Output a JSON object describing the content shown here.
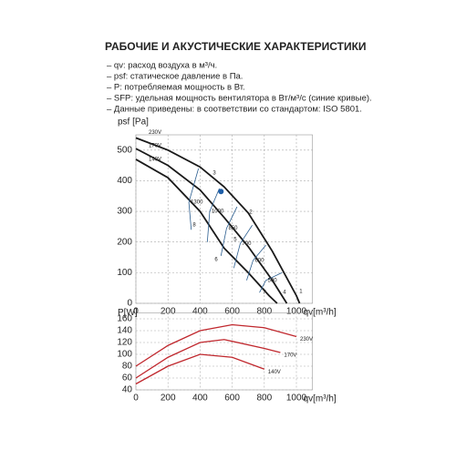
{
  "header": {
    "title": "РАБОЧИЕ И АКУСТИЧЕСКИЕ ХАРАКТЕРИСТИКИ",
    "notes": [
      "– qv: расход воздуха в м³/ч.",
      "– psf: статическое давление в Па.",
      "– P: потребляемая мощность в Вт.",
      "– SFP: удельная мощность вентилятора в Вт/м³/с (синие кривые).",
      "– Данные приведены: в соответствии со стандартом: ISO 5801."
    ]
  },
  "chart_data": [
    {
      "type": "line",
      "x_label": "qv[m³/h]",
      "y_label": "psf [Pa]",
      "xlim": [
        0,
        1100
      ],
      "xticks": [
        0,
        200,
        400,
        600,
        800,
        1000
      ],
      "ylim": [
        0,
        550
      ],
      "yticks": [
        0,
        100,
        200,
        300,
        400,
        500
      ],
      "grid": true,
      "series": [
        {
          "name": "230V",
          "color": "#1a1a1a",
          "x": [
            0,
            200,
            400,
            550,
            700,
            850,
            1000,
            1020
          ],
          "values": [
            540,
            500,
            445,
            380,
            295,
            170,
            25,
            0
          ]
        },
        {
          "name": "170V",
          "color": "#1a1a1a",
          "x": [
            0,
            200,
            400,
            550,
            700,
            850,
            940
          ],
          "values": [
            505,
            450,
            370,
            280,
            185,
            75,
            0
          ]
        },
        {
          "name": "140V",
          "color": "#1a1a1a",
          "x": [
            0,
            200,
            400,
            550,
            700,
            830,
            880
          ],
          "values": [
            470,
            410,
            300,
            180,
            100,
            25,
            0
          ]
        }
      ],
      "sfp_curves": [
        {
          "name": "1300",
          "color": "#2a5d8f",
          "x": [
            390,
            330,
            345
          ],
          "values": [
            440,
            330,
            240
          ]
        },
        {
          "name": "1000",
          "color": "#2a5d8f",
          "x": [
            520,
            460,
            445
          ],
          "values": [
            375,
            300,
            200
          ]
        },
        {
          "name": "850",
          "color": "#2a5d8f",
          "x": [
            630,
            565,
            530
          ],
          "values": [
            315,
            245,
            155
          ]
        },
        {
          "name": "700",
          "color": "#2a5d8f",
          "x": [
            725,
            650,
            610
          ],
          "values": [
            255,
            195,
            115
          ]
        },
        {
          "name": "600",
          "color": "#2a5d8f",
          "x": [
            810,
            730,
            690
          ],
          "values": [
            190,
            140,
            75
          ]
        },
        {
          "name": "500",
          "color": "#2a5d8f",
          "x": [
            910,
            810,
            770
          ],
          "values": [
            100,
            75,
            35
          ]
        }
      ],
      "operating_point": {
        "x": 530,
        "y": 365,
        "color": "#1f5fa8"
      },
      "annotations": [
        {
          "text": "1",
          "x": 1028,
          "y": 39
        },
        {
          "text": "2",
          "x": 716,
          "y": 298
        },
        {
          "text": "3",
          "x": 489,
          "y": 426
        },
        {
          "text": "4",
          "x": 926,
          "y": 36
        },
        {
          "text": "5",
          "x": 619,
          "y": 208
        },
        {
          "text": "6",
          "x": 500,
          "y": 143
        },
        {
          "text": "7",
          "x": 801,
          "y": 36
        },
        {
          "text": "8",
          "x": 364,
          "y": 256
        }
      ]
    },
    {
      "type": "line",
      "x_label": "qv[m³/h]",
      "y_label": "P[W]",
      "y_label_color": "#c0272d",
      "xlim": [
        0,
        1100
      ],
      "xticks": [
        0,
        200,
        400,
        600,
        800,
        1000
      ],
      "ylim": [
        40,
        170
      ],
      "yticks": [
        40,
        60,
        80,
        100,
        120,
        140,
        160
      ],
      "grid": true,
      "series": [
        {
          "name": "230V",
          "color": "#c0272d",
          "x": [
            0,
            200,
            400,
            600,
            800,
            1000
          ],
          "values": [
            80,
            115,
            140,
            150,
            145,
            130
          ]
        },
        {
          "name": "170V",
          "color": "#c0272d",
          "x": [
            0,
            200,
            400,
            550,
            800,
            900
          ],
          "values": [
            60,
            95,
            120,
            125,
            110,
            103
          ]
        },
        {
          "name": "140V",
          "color": "#c0272d",
          "x": [
            0,
            200,
            400,
            600,
            800
          ],
          "values": [
            50,
            80,
            100,
            95,
            75
          ]
        }
      ]
    }
  ]
}
